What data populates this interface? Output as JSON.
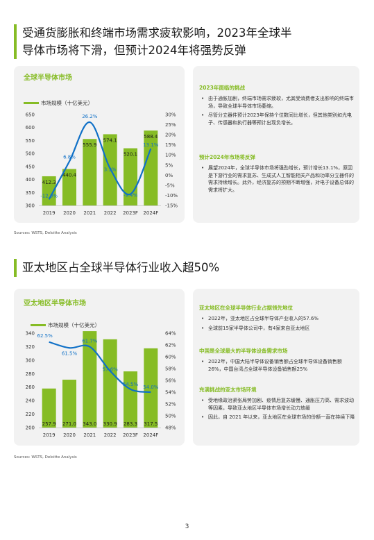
{
  "section1": {
    "title_line1": "受通货膨胀和终端市场需求疲软影响，2023年全球半",
    "title_line2": "导体市场将下滑，但预计2024年将强势反弹",
    "panel_title": "全球半导体市场",
    "legend": "市场规模（十亿美元）",
    "right_heading1": "2023年面临的挑战",
    "bullets1": [
      "由于通胀加剧，终端市场需求疲软，尤其受消费者支出影响的终端市场，导致全球半导体市场萎缩。",
      "尽管分立器件预计2023年保持个位数同比增长，但其他类别如光电子、传感器和执行器等预计出现负增长。"
    ],
    "right_heading2": "预计2024年市场将反弹",
    "bullets2": [
      "展望2024年，全球半导体市场将强劲增长，预计增长13.1%，原因是下游行业的需求复苏、生成式人工智能相关产品和功率分立器件的需求持续增长。此外，经济复苏的预期不断增强，对电子设备总体的需求将扩大。"
    ],
    "source": "Sources: WSTS, Deloitte Analysis"
  },
  "section2": {
    "title": "亚太地区占全球半导体行业收入超50%",
    "panel_title": "亚太地区半导体市场",
    "legend": "市场规模（十亿美元）",
    "right_heading1": "亚太地区在全球半导体行业占据领先地位",
    "bullets1": [
      "2022年，亚太地区占全球半导体产业收入的57.6%",
      "全球前15家半导体公司中，有4家来自亚太地区"
    ],
    "right_heading2": "中国是全球最大的半导体设备需求市场",
    "bullets2": [
      "2022年，中国大陆半导体设备销售额占全球半导体设备销售额26%，中国台湾占全球半导体设备销售额25%"
    ],
    "right_heading3": "充满挑战的亚太市场环境",
    "bullets3": [
      "受地缘政治紧张局势加剧、疫情后复苏缓慢、通胀压力高、需求波动等因素，导致亚太地区半导体市场增长动力放缓",
      "因此，自 2021 年以来，亚太地区在全球市场的份额一直在持续下降"
    ],
    "source": "Sources: WSTS, Deloitte Analysis"
  },
  "page_number": "3",
  "colors": {
    "bar": "#86bc25",
    "line": "#0f70c7",
    "panel": "#f2f2f2"
  },
  "chart_data": [
    {
      "type": "bar",
      "title": "全球半导体市场",
      "categories": [
        "2019",
        "2020",
        "2021",
        "2022",
        "2023F",
        "2024F"
      ],
      "series": [
        {
          "name": "市场规模（十亿美元）",
          "type": "bar",
          "axis": "left",
          "values": [
            412.3,
            440.4,
            555.9,
            574.1,
            520.1,
            588.4
          ],
          "labels": [
            "412.3",
            "440.4",
            "555.9",
            "574.1",
            "520.1",
            "588.4"
          ]
        },
        {
          "type": "line",
          "axis": "right",
          "values": [
            -12.0,
            6.8,
            26.2,
            3.3,
            -9.4,
            13.1
          ],
          "labels": [
            "-12.0%",
            "6.8%",
            "26.2%",
            "3.3%",
            "-9.4%",
            "13.1%"
          ]
        }
      ],
      "left_axis": {
        "ylim": [
          300,
          650
        ],
        "ticks": [
          "300",
          "350",
          "400",
          "450",
          "500",
          "550",
          "600",
          "650"
        ]
      },
      "right_axis": {
        "ylim": [
          -15,
          30
        ],
        "ticks": [
          "-15%",
          "-10%",
          "-5%",
          "0%",
          "5%",
          "10%",
          "15%",
          "20%",
          "25%",
          "30%"
        ]
      },
      "grid": false,
      "legend_position": "top-left"
    },
    {
      "type": "bar",
      "title": "亚太地区半导体市场",
      "categories": [
        "2019",
        "2020",
        "2021",
        "2022",
        "2023F",
        "2024F"
      ],
      "series": [
        {
          "name": "市场规模（十亿美元）",
          "type": "bar",
          "axis": "left",
          "values": [
            257.9,
            271.0,
            343.0,
            330.9,
            283.3,
            317.5
          ],
          "labels": [
            "257.9",
            "271.0",
            "343.0",
            "330.9",
            "283.3",
            "317.5"
          ]
        },
        {
          "type": "line",
          "axis": "right",
          "values": [
            62.5,
            61.5,
            61.7,
            57.6,
            54.5,
            54.0
          ],
          "labels": [
            "62.5%",
            "61.5%",
            "61.7%",
            "57.6%",
            "54.5%",
            "54.0%"
          ]
        }
      ],
      "left_axis": {
        "ylim": [
          200,
          340
        ],
        "ticks": [
          "200",
          "220",
          "240",
          "260",
          "280",
          "300",
          "320",
          "340"
        ]
      },
      "right_axis": {
        "ylim": [
          48,
          64
        ],
        "ticks": [
          "48%",
          "50%",
          "52%",
          "54%",
          "56%",
          "58%",
          "60%",
          "62%",
          "64%"
        ]
      },
      "grid": false,
      "legend_position": "top-left"
    }
  ]
}
